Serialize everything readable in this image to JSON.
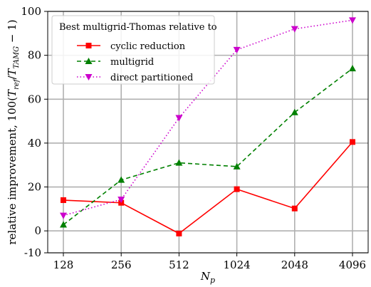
{
  "chart_data": {
    "type": "line",
    "x": [
      "128",
      "256",
      "512",
      "1024",
      "2048",
      "4096"
    ],
    "ylim": [
      -10,
      100
    ],
    "yticks": [
      -10,
      0,
      20,
      40,
      60,
      80,
      100
    ],
    "xlabel_main": "N",
    "xlabel_sub": "p",
    "ylabel": {
      "prefix": "relative improvement, 100(",
      "t1": "T",
      "t1_sub": "ref",
      "slash": "/",
      "t2": "T",
      "t2_sub": "TAMG",
      "suffix": " − 1)"
    },
    "grid": true,
    "legend": {
      "title": "Best multigrid-Thomas relative to",
      "placement": "top-left"
    },
    "series": [
      {
        "name": "cyclic reduction",
        "color": "#ff0000",
        "line": "solid",
        "marker": "square",
        "values": [
          14.0,
          12.8,
          -1.2,
          19.0,
          10.2,
          40.5
        ]
      },
      {
        "name": "multigrid",
        "color": "#008000",
        "line": "dashed",
        "marker": "triangle-up",
        "values": [
          2.8,
          23.2,
          31.0,
          29.3,
          54.0,
          74.0
        ]
      },
      {
        "name": "direct partitioned",
        "color": "#cc00cc",
        "line": "dotted",
        "marker": "triangle-down",
        "values": [
          7.0,
          14.3,
          51.5,
          82.5,
          92.0,
          96.0
        ]
      }
    ]
  }
}
